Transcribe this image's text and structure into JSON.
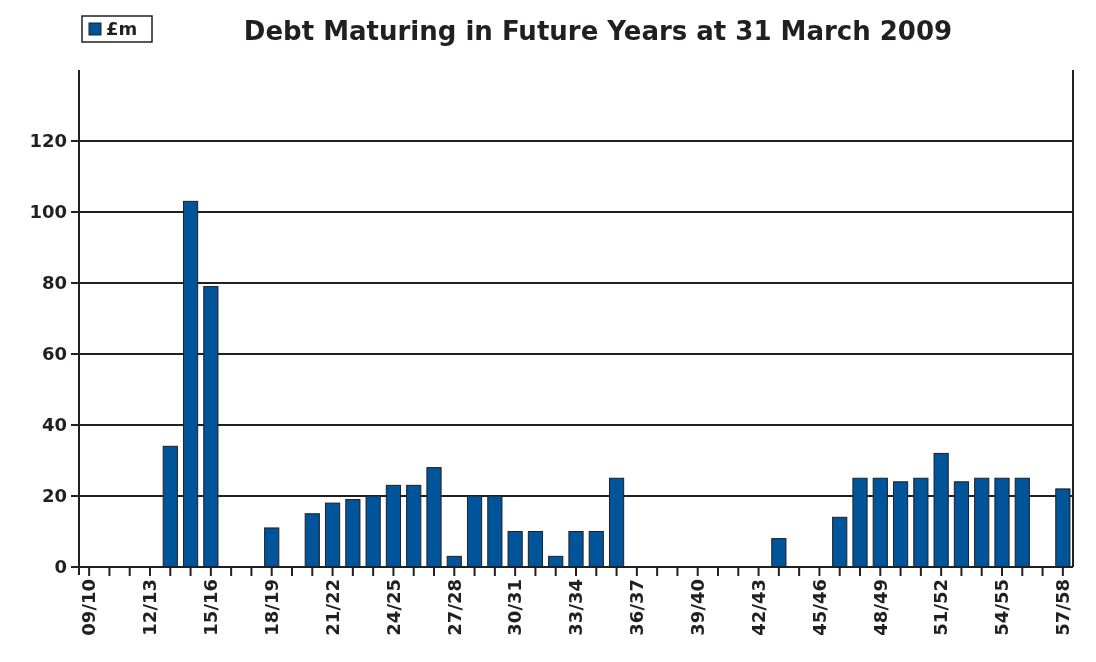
{
  "chart_data": {
    "type": "bar",
    "title": "Debt Maturing in Future Years at 31 March 2009",
    "categories": [
      "09/10",
      null,
      null,
      "12/13",
      null,
      null,
      "15/16",
      null,
      null,
      "18/19",
      null,
      null,
      "21/22",
      null,
      null,
      "24/25",
      null,
      null,
      "27/28",
      null,
      null,
      "30/31",
      null,
      null,
      "33/34",
      null,
      null,
      "36/37",
      null,
      null,
      "39/40",
      null,
      null,
      "42/43",
      null,
      null,
      "45/46",
      null,
      null,
      "48/49",
      null,
      null,
      "51/52",
      null,
      null,
      "54/55",
      null,
      null,
      "57/58"
    ],
    "series": [
      {
        "name": "£m",
        "color": "#005499",
        "values": [
          0,
          0,
          0,
          0,
          34,
          103,
          79,
          0,
          0,
          11,
          0,
          15,
          18,
          19,
          20,
          23,
          23,
          28,
          3,
          20,
          20,
          10,
          10,
          3,
          10,
          10,
          25,
          0,
          0,
          0,
          0,
          0,
          0,
          0,
          8,
          0,
          0,
          14,
          25,
          25,
          24,
          25,
          32,
          24,
          25,
          25,
          25,
          0,
          22
        ]
      }
    ],
    "ylim": [
      0,
      140
    ],
    "yticks": [
      0,
      20,
      40,
      60,
      80,
      100,
      120
    ],
    "grid": "y",
    "legend": "top left"
  }
}
